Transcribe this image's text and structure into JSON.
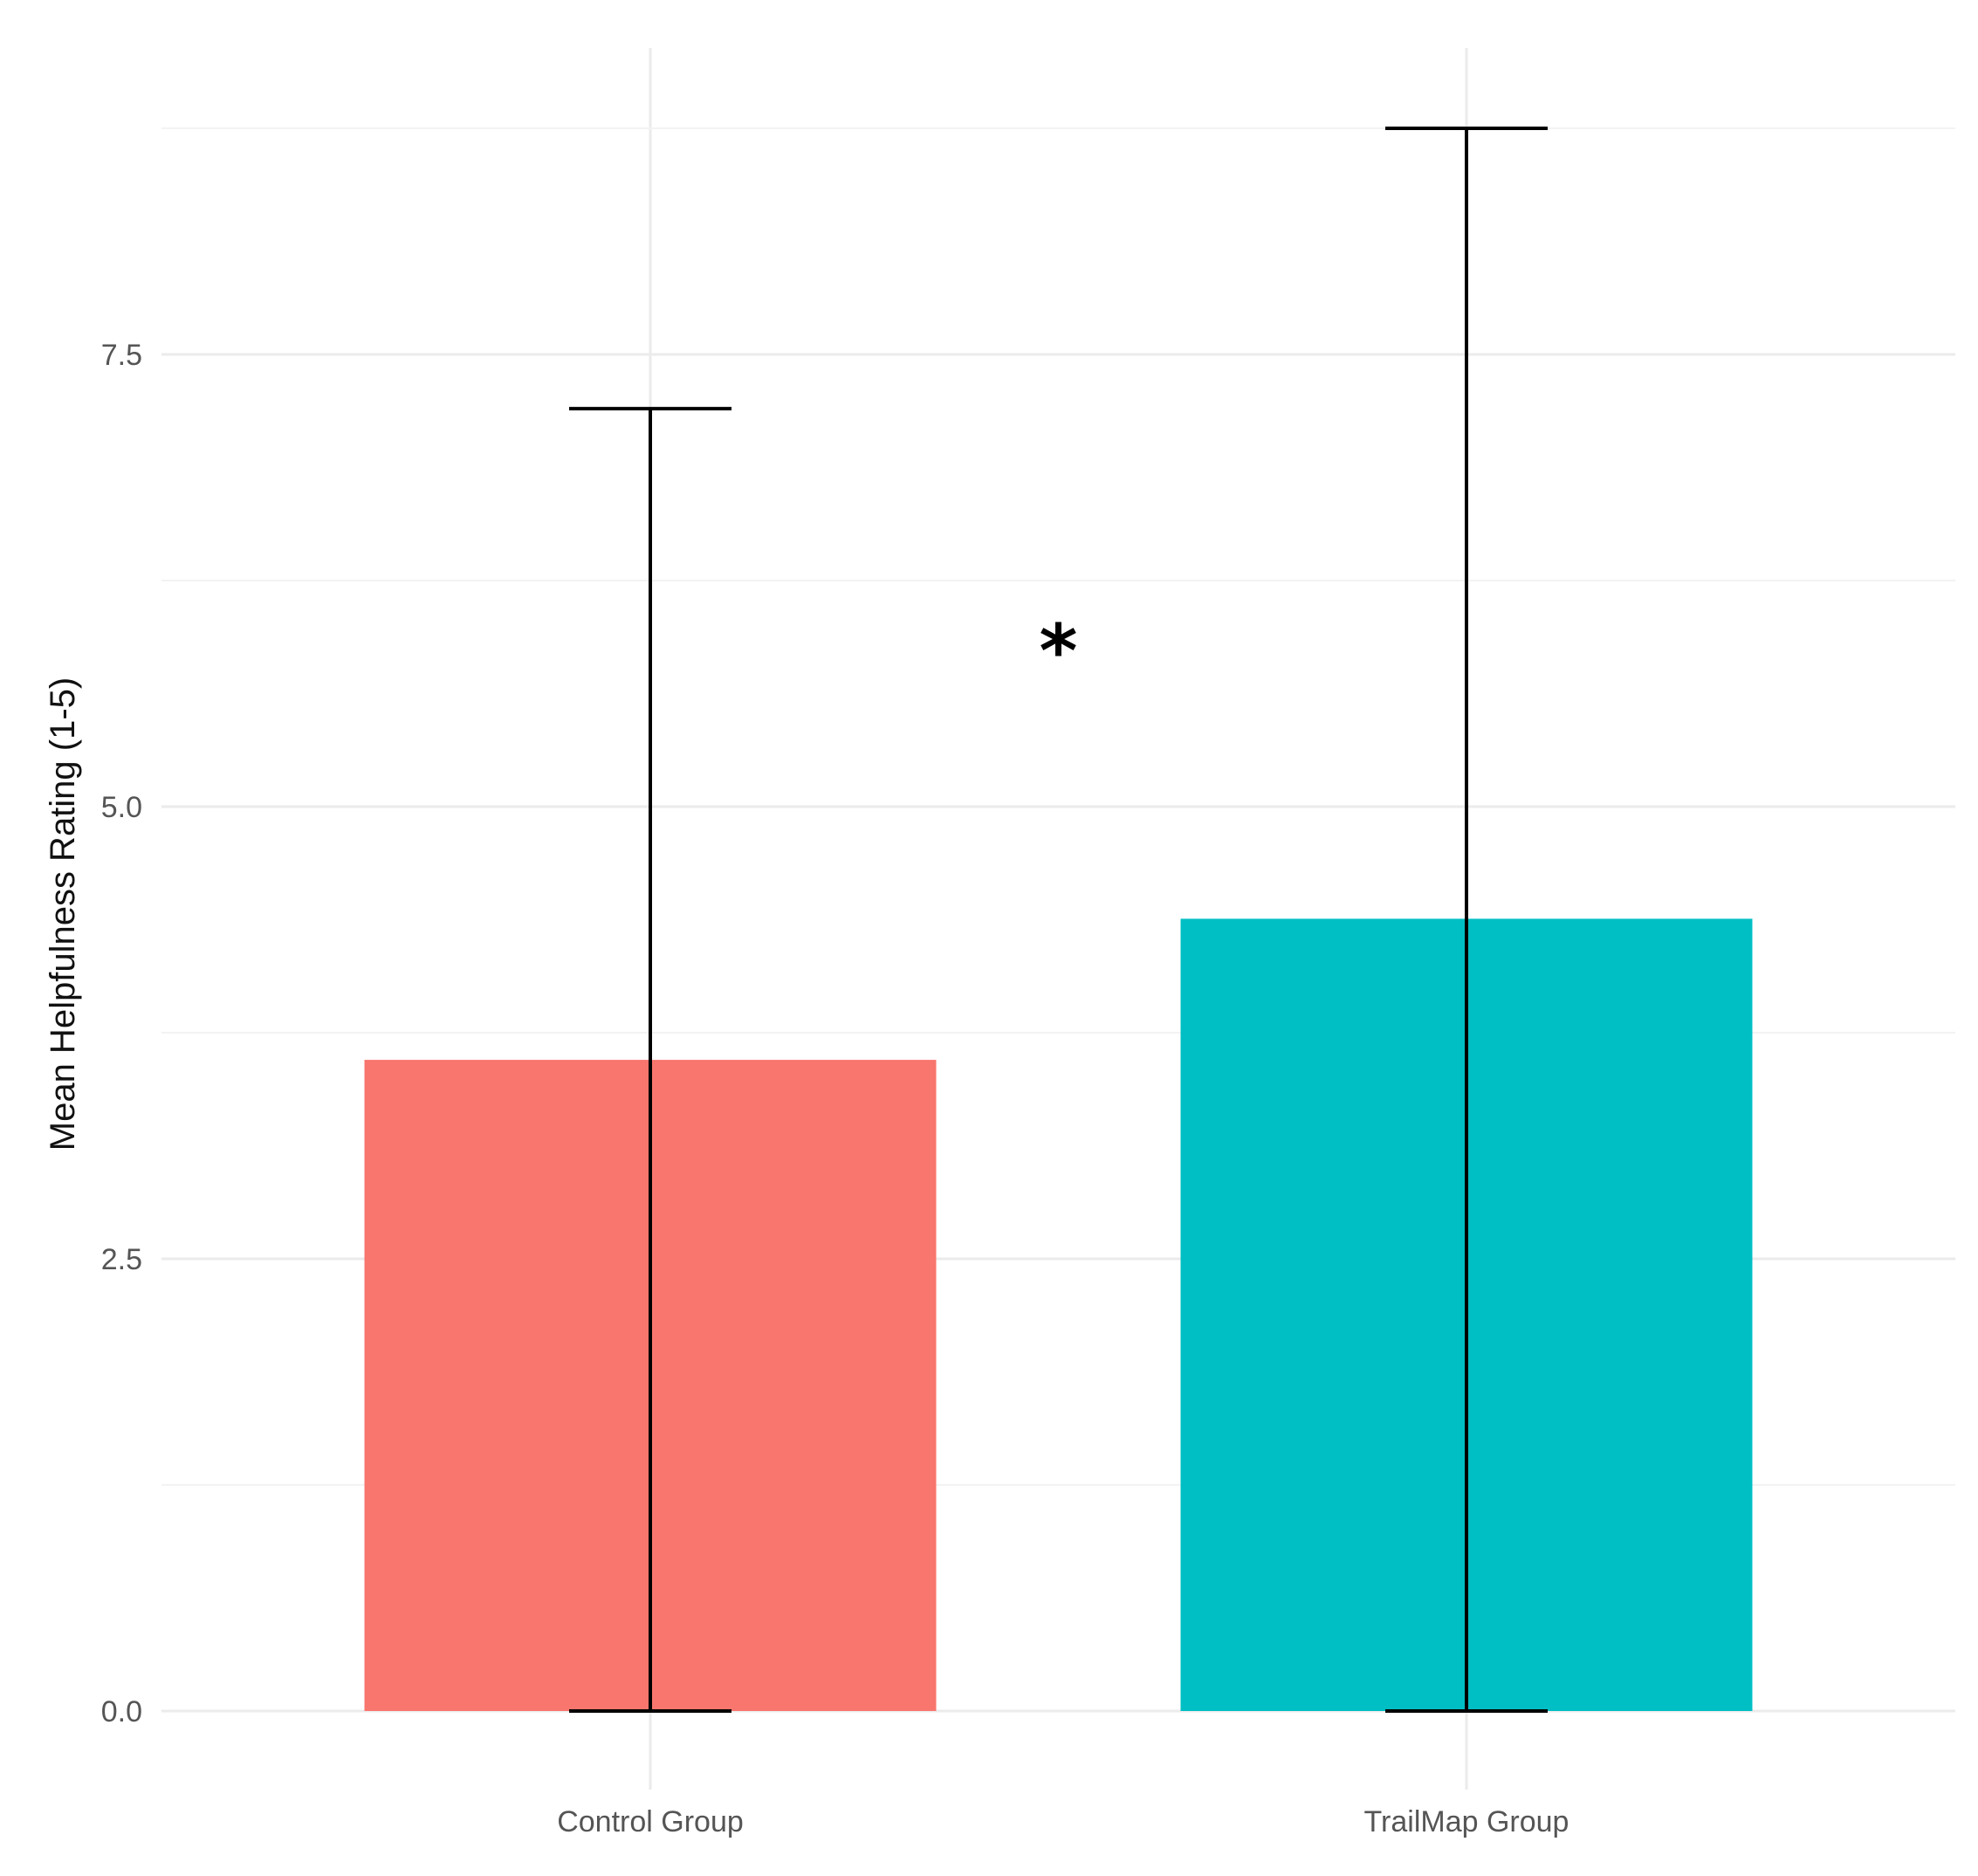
{
  "chart_data": {
    "type": "bar",
    "categories": [
      "Control Group",
      "TrailMap Group"
    ],
    "values": [
      3.6,
      4.38
    ],
    "error_bars": {
      "lower": [
        0.0,
        0.0
      ],
      "upper": [
        7.2,
        8.75
      ]
    },
    "colors": [
      "#F8766D",
      "#00BFC4"
    ],
    "ylabel": "Mean Helpfulness Rating (1-5)",
    "xlabel": "",
    "ylim": [
      0,
      9.2
    ],
    "yticks": [
      {
        "value": 0,
        "label": "0.0"
      },
      {
        "value": 2.5,
        "label": "2.5"
      },
      {
        "value": 5,
        "label": "5.0"
      },
      {
        "value": 7.5,
        "label": "7.5"
      }
    ],
    "minor_gridlines": [
      1.25,
      3.75,
      6.25,
      8.75
    ],
    "grid": true,
    "legend": "none",
    "annotations": [
      {
        "text": "*",
        "x": 1.5,
        "y": 6.0
      }
    ]
  }
}
